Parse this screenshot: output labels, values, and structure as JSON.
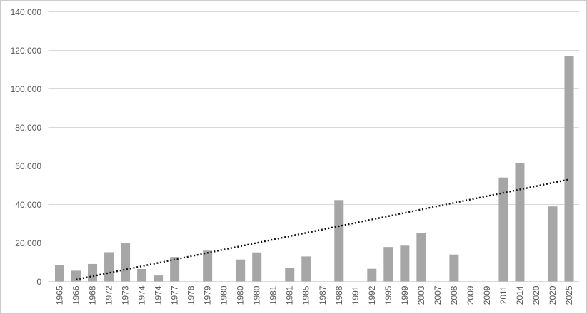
{
  "chart_data": {
    "type": "bar",
    "title": "",
    "xlabel": "",
    "ylabel": "",
    "legend_position": "none",
    "grid": true,
    "ylim": [
      0,
      140000
    ],
    "y_tick_labels": [
      "0",
      "20.000",
      "40.000",
      "60.000",
      "80.000",
      "100.000",
      "120.000",
      "140.000"
    ],
    "y_tick_values": [
      0,
      20000,
      40000,
      60000,
      80000,
      100000,
      120000,
      140000
    ],
    "categories": [
      "1965",
      "1966",
      "1968",
      "1972",
      "1973",
      "1974",
      "1974",
      "1977",
      "1978",
      "1979",
      "1980",
      "1980",
      "1980",
      "1981",
      "1981",
      "1985",
      "1987",
      "1988",
      "1991",
      "1992",
      "1995",
      "1999",
      "2003",
      "2007",
      "2008",
      "2009",
      "2009",
      "2011",
      "2014",
      "2020",
      "2020",
      "2025"
    ],
    "values": [
      8700,
      5600,
      9100,
      15200,
      19800,
      6500,
      3100,
      12700,
      0,
      16000,
      0,
      11400,
      15100,
      0,
      7100,
      13000,
      0,
      42300,
      0,
      6600,
      17900,
      18600,
      25100,
      0,
      14000,
      0,
      0,
      54000,
      61500,
      0,
      39000,
      117000
    ],
    "trendline": {
      "style": "dotted",
      "color": "#111111",
      "start_index": 1,
      "start_value": 1000,
      "end_index": 31,
      "end_value": 53000
    },
    "colors": {
      "bar": "#a6a6a6",
      "gridline": "#d9d9d9",
      "axis_line": "#d9d9d9",
      "tick_label": "#595959",
      "background": "#ffffff"
    }
  }
}
